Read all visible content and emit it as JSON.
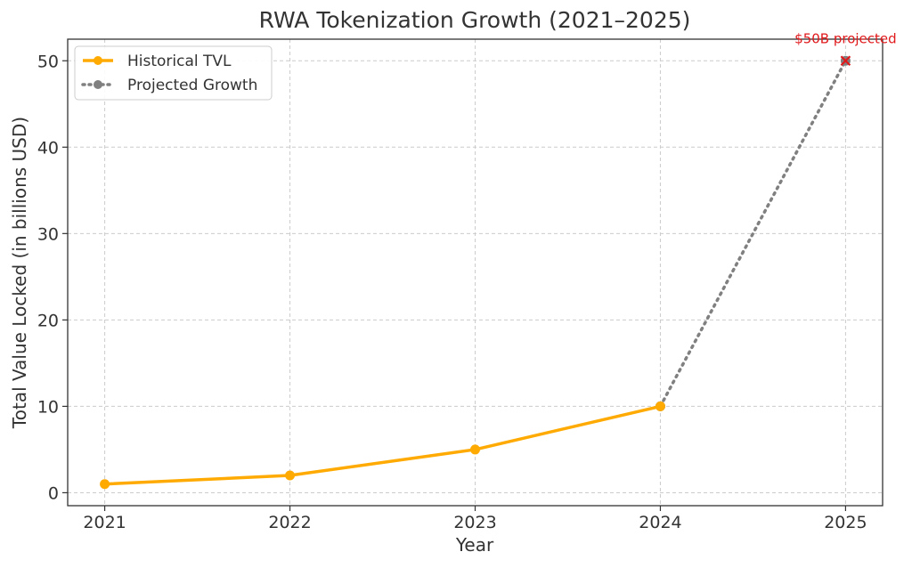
{
  "chart_data": {
    "type": "line",
    "title": "RWA Tokenization Growth (2021–2025)",
    "xlabel": "Year",
    "ylabel": "Total Value Locked (in billions USD)",
    "x": [
      2021,
      2022,
      2023,
      2024,
      2025
    ],
    "xticks": [
      "2021",
      "2022",
      "2023",
      "2024",
      "2025"
    ],
    "yticks": [
      0,
      10,
      20,
      30,
      40,
      50
    ],
    "ytick_labels": [
      "0",
      "10",
      "20",
      "30",
      "40",
      "50"
    ],
    "xlim": [
      2020.8,
      2025.2
    ],
    "ylim": [
      -1.5,
      52.5
    ],
    "grid": true,
    "legend_position": "top-left",
    "series": [
      {
        "name": "Historical TVL",
        "style": "solid",
        "color": "#FFAA00",
        "x": [
          2021,
          2022,
          2023,
          2024
        ],
        "values": [
          1,
          2,
          5,
          10
        ]
      },
      {
        "name": "Projected Growth",
        "style": "dotted",
        "color": "#808080",
        "x": [
          2024,
          2025
        ],
        "values": [
          10,
          50
        ]
      }
    ],
    "annotations": [
      {
        "text": "$50B projected",
        "x": 2025,
        "y": 50,
        "color": "#E0191B",
        "marker": "x"
      }
    ]
  }
}
